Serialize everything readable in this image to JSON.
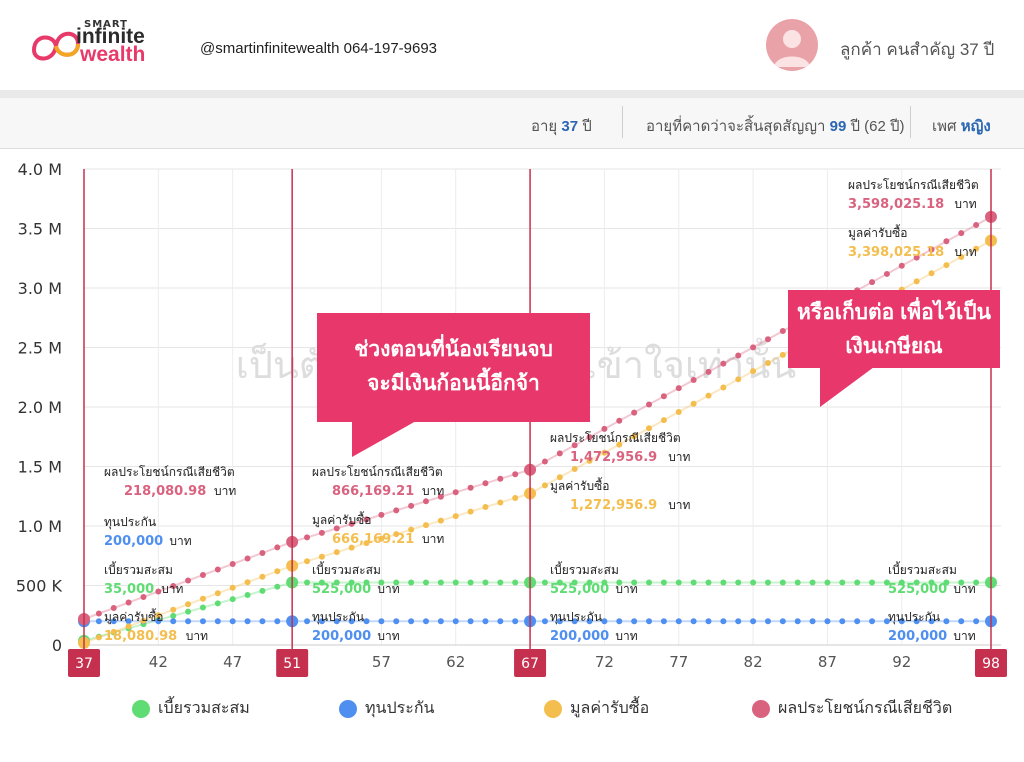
{
  "header": {
    "logo_small": "SMART",
    "logo_line1": "infinite",
    "logo_line2": "wealth",
    "contact": "@smartinfinitewealth 064-197-9693",
    "customer": "ลูกค้า คนสำคัญ 37 ปี"
  },
  "info": {
    "age_label": "อายุ",
    "age_value": "37",
    "age_unit": "ปี",
    "expect_label": "อายุที่คาดว่าจะสิ้นสุดสัญญา",
    "expect_value": "99",
    "expect_unit": "ปี (62 ปี)",
    "gender_label": "เพศ",
    "gender_value": "หญิง"
  },
  "watermark": "เป็นตัวอย่างเพื่อความเข้าใจเท่านั้น",
  "callouts": {
    "left_line1": "ช่วงตอนที่น้องเรียนจบ",
    "left_line2": "จะมีเงินก้อนนี้อีกจ้า",
    "right_line1": "หรือเก็บต่อ เพื่อไว้เป็น",
    "right_line2": "เงินเกษียณ"
  },
  "colors": {
    "accumulated": "#5fdc73",
    "sum_insured": "#4f8ff0",
    "cash_value": "#f4be4f",
    "death_benefit": "#d9627f",
    "marker": "#c5304f",
    "callout": "#e8376b"
  },
  "chart_data": {
    "type": "line",
    "x_ticks": [
      "37",
      "42",
      "47",
      "51",
      "57",
      "62",
      "67",
      "72",
      "77",
      "82",
      "87",
      "92",
      "98"
    ],
    "highlight_ages": [
      "37",
      "51",
      "67",
      "98"
    ],
    "y_ticks": [
      "0",
      "500 K",
      "1.0 M",
      "1.5 M",
      "2.0 M",
      "2.5 M",
      "3.0 M",
      "3.5 M",
      "4.0 M"
    ],
    "ylim": [
      0,
      4000000
    ],
    "xlim": [
      37,
      98
    ],
    "series": [
      {
        "name": "เบี้ยรวมสะสม",
        "key": "accumulated",
        "points": [
          [
            37,
            35000
          ],
          [
            51,
            525000
          ],
          [
            52,
            525000
          ],
          [
            67,
            525000
          ],
          [
            98,
            525000
          ]
        ]
      },
      {
        "name": "ทุนประกัน",
        "key": "sum_insured",
        "points": [
          [
            37,
            200000
          ],
          [
            51,
            200000
          ],
          [
            67,
            200000
          ],
          [
            98,
            200000
          ]
        ]
      },
      {
        "name": "มูลค่ารับซื้อ",
        "key": "cash_value",
        "points": [
          [
            37,
            18080.98
          ],
          [
            51,
            666169.21
          ],
          [
            67,
            1272956.9
          ],
          [
            98,
            3398025.18
          ]
        ]
      },
      {
        "name": "ผลประโยชน์กรณีเสียชีวิต",
        "key": "death_benefit",
        "points": [
          [
            37,
            218080.98
          ],
          [
            51,
            866169.21
          ],
          [
            67,
            1472956.9
          ],
          [
            98,
            3598025.18
          ]
        ]
      }
    ],
    "annotations": [
      {
        "age": "37",
        "lines": [
          {
            "label": "ผลประโยชน์กรณีเสียชีวิต",
            "value": "218,080.98",
            "unit": "บาท",
            "color": "death_benefit"
          },
          {
            "label": "ทุนประกัน",
            "value": "200,000",
            "unit": "บาท",
            "color": "sum_insured"
          },
          {
            "label": "เบี้ยรวมสะสม",
            "value": "35,000",
            "unit": "บาท",
            "color": "accumulated"
          },
          {
            "label": "มูลค่ารับซื้อ",
            "value": "18,080.98",
            "unit": "บาท",
            "color": "cash_value"
          }
        ]
      },
      {
        "age": "51",
        "lines": [
          {
            "label": "ผลประโยชน์กรณีเสียชีวิต",
            "value": "866,169.21",
            "unit": "บาท",
            "color": "death_benefit"
          },
          {
            "label": "มูลค่ารับซื้อ",
            "value": "666,169.21",
            "unit": "บาท",
            "color": "cash_value"
          },
          {
            "label": "เบี้ยรวมสะสม",
            "value": "525,000",
            "unit": "บาท",
            "color": "accumulated"
          },
          {
            "label": "ทุนประกัน",
            "value": "200,000",
            "unit": "บาท",
            "color": "sum_insured"
          }
        ]
      },
      {
        "age": "67",
        "lines": [
          {
            "label": "ผลประโยชน์กรณีเสียชีวิต",
            "value": "1,472,956.9",
            "unit": "บาท",
            "color": "death_benefit"
          },
          {
            "label": "มูลค่ารับซื้อ",
            "value": "1,272,956.9",
            "unit": "บาท",
            "color": "cash_value"
          },
          {
            "label": "เบี้ยรวมสะสม",
            "value": "525,000",
            "unit": "บาท",
            "color": "accumulated"
          },
          {
            "label": "ทุนประกัน",
            "value": "200,000",
            "unit": "บาท",
            "color": "sum_insured"
          }
        ]
      },
      {
        "age": "98",
        "lines": [
          {
            "label": "ผลประโยชน์กรณีเสียชีวิต",
            "value": "3,598,025.18",
            "unit": "บาท",
            "color": "death_benefit"
          },
          {
            "label": "มูลค่ารับซื้อ",
            "value": "3,398,025.18",
            "unit": "บาท",
            "color": "cash_value"
          },
          {
            "label": "เบี้ยรวมสะสม",
            "value": "525,000",
            "unit": "บาท",
            "color": "accumulated"
          },
          {
            "label": "ทุนประกัน",
            "value": "200,000",
            "unit": "บาท",
            "color": "sum_insured"
          }
        ]
      }
    ]
  }
}
